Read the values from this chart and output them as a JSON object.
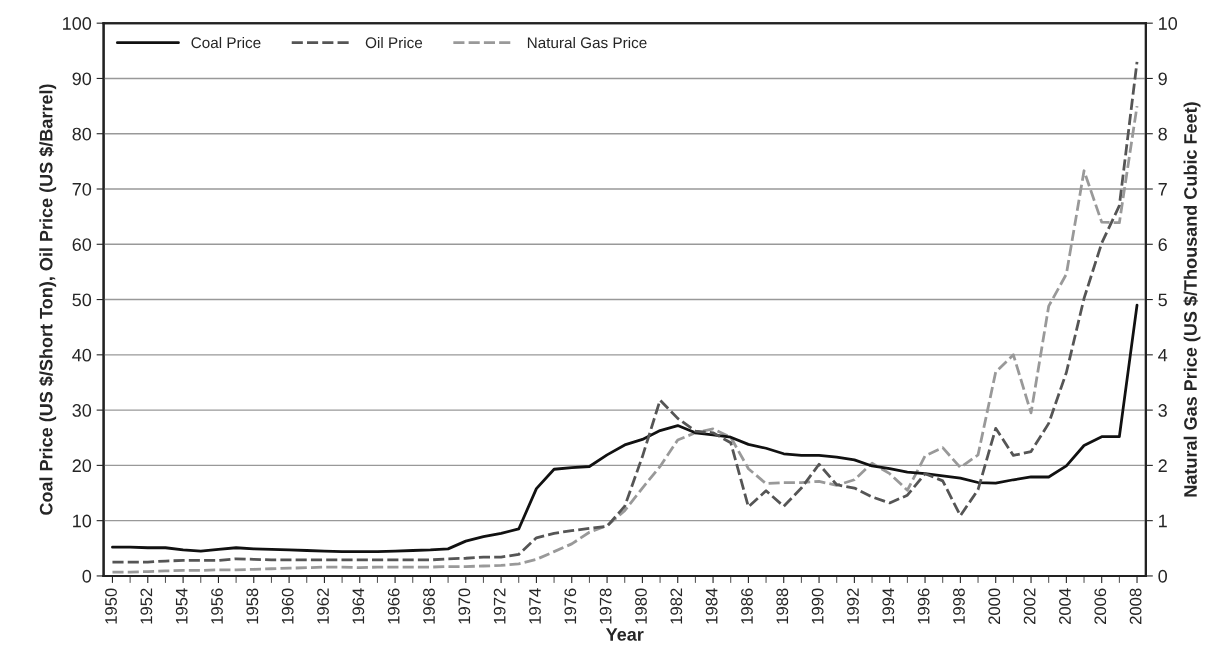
{
  "chart_data": {
    "type": "line",
    "xlabel": "Year",
    "ylabel": "Coal Price (US $/Short Ton), Oil Price (US $/Barrel)",
    "y2label": "Natural Gas Price (US $/Thousand Cubic Feet)",
    "x": [
      1950,
      1951,
      1952,
      1953,
      1954,
      1955,
      1956,
      1957,
      1958,
      1959,
      1960,
      1961,
      1962,
      1963,
      1964,
      1965,
      1966,
      1967,
      1968,
      1969,
      1970,
      1971,
      1972,
      1973,
      1974,
      1975,
      1976,
      1977,
      1978,
      1979,
      1980,
      1981,
      1982,
      1983,
      1984,
      1985,
      1986,
      1987,
      1988,
      1989,
      1990,
      1991,
      1992,
      1993,
      1994,
      1995,
      1996,
      1997,
      1998,
      1999,
      2000,
      2001,
      2002,
      2003,
      2004,
      2005,
      2006,
      2007,
      2008
    ],
    "series": [
      {
        "name": "Coal Price",
        "color": "#111111",
        "line_style": "solid",
        "values": [
          5.2,
          5.2,
          5.1,
          5.1,
          4.7,
          4.5,
          4.8,
          5.1,
          4.9,
          4.8,
          4.7,
          4.6,
          4.5,
          4.4,
          4.4,
          4.4,
          4.5,
          4.6,
          4.7,
          4.9,
          6.3,
          7.1,
          7.7,
          8.5,
          15.8,
          19.3,
          19.6,
          19.8,
          21.9,
          23.7,
          24.7,
          26.3,
          27.2,
          25.9,
          25.5,
          25.1,
          23.8,
          23.1,
          22.1,
          21.8,
          21.8,
          21.5,
          21.0,
          19.9,
          19.4,
          18.8,
          18.5,
          18.1,
          17.7,
          16.9,
          16.8,
          17.4,
          17.9,
          17.9,
          19.9,
          23.6,
          25.2,
          25.2,
          49
        ]
      },
      {
        "name": "Oil Price",
        "color": "#555555",
        "line_style": "dashed",
        "values": [
          2.5,
          2.5,
          2.5,
          2.7,
          2.8,
          2.8,
          2.8,
          3.1,
          3.0,
          2.9,
          2.9,
          2.9,
          2.9,
          2.9,
          2.9,
          2.9,
          2.9,
          2.9,
          2.9,
          3.1,
          3.2,
          3.4,
          3.4,
          3.9,
          6.9,
          7.7,
          8.2,
          8.6,
          9.0,
          12.6,
          21.6,
          31.8,
          28.5,
          26.2,
          25.9,
          24.1,
          12.5,
          15.4,
          12.6,
          15.9,
          20.2,
          16.5,
          15.9,
          14.3,
          13.2,
          14.6,
          18.5,
          17.2,
          10.9,
          15.6,
          26.7,
          21.8,
          22.5,
          27.6,
          36.8,
          50.2,
          60.2,
          67.0,
          93
        ]
      },
      {
        "name": "Natural Gas Price",
        "color": "#999999",
        "line_style": "dashed",
        "axis": "y2",
        "values": [
          0.07,
          0.07,
          0.08,
          0.09,
          0.1,
          0.1,
          0.11,
          0.11,
          0.12,
          0.13,
          0.14,
          0.15,
          0.16,
          0.16,
          0.15,
          0.16,
          0.16,
          0.16,
          0.16,
          0.17,
          0.17,
          0.18,
          0.19,
          0.22,
          0.3,
          0.44,
          0.58,
          0.79,
          0.91,
          1.18,
          1.59,
          1.98,
          2.46,
          2.59,
          2.66,
          2.51,
          1.94,
          1.67,
          1.69,
          1.69,
          1.71,
          1.64,
          1.74,
          2.04,
          1.85,
          1.55,
          2.17,
          2.32,
          1.96,
          2.19,
          3.69,
          4.0,
          2.95,
          4.88,
          5.46,
          7.33,
          6.4,
          6.39,
          8.5
        ]
      }
    ],
    "xlim": [
      1949.5,
      2008.5
    ],
    "xticks": [
      1950,
      1952,
      1954,
      1956,
      1958,
      1960,
      1962,
      1964,
      1966,
      1968,
      1970,
      1972,
      1974,
      1976,
      1978,
      1980,
      1982,
      1984,
      1986,
      1988,
      1990,
      1992,
      1994,
      1996,
      1998,
      2000,
      2002,
      2004,
      2006,
      2008
    ],
    "ylim": [
      0,
      100
    ],
    "yticks": [
      0,
      10,
      20,
      30,
      40,
      50,
      60,
      70,
      80,
      90,
      100
    ],
    "y2lim": [
      0,
      10
    ],
    "y2ticks": [
      0,
      1,
      2,
      3,
      4,
      5,
      6,
      7,
      8,
      9,
      10
    ],
    "grid": "y",
    "legend": "top left",
    "marker": "none"
  }
}
